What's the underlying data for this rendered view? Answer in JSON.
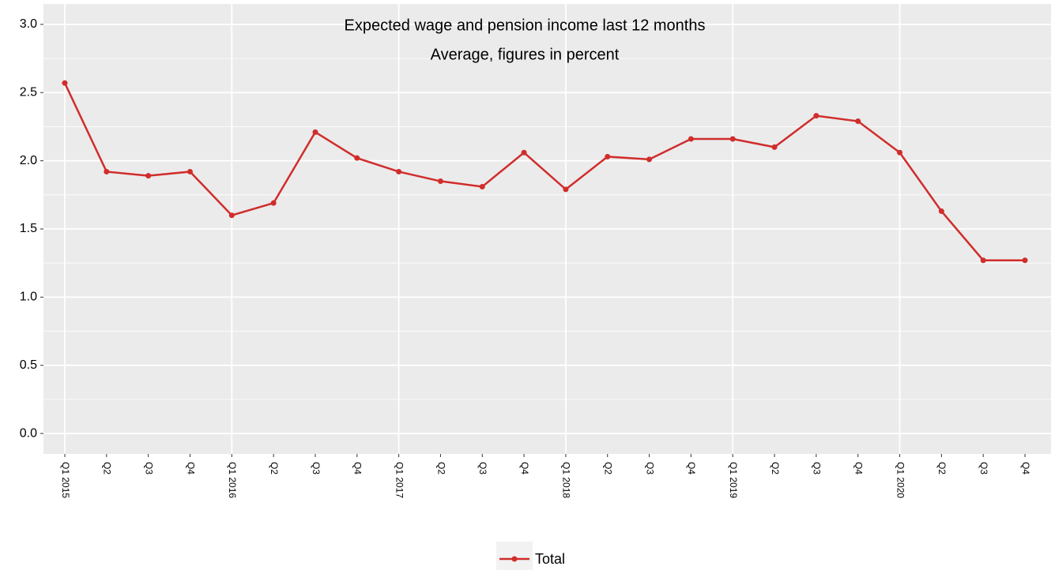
{
  "chart_data": {
    "type": "line",
    "title": "Expected wage and pension income last 12 months",
    "subtitle": "Average, figures in percent",
    "categories": [
      "Q1 2015",
      "Q2",
      "Q3",
      "Q4",
      "Q1 2016",
      "Q2",
      "Q3",
      "Q4",
      "Q1 2017",
      "Q2",
      "Q3",
      "Q4",
      "Q1 2018",
      "Q2",
      "Q3",
      "Q4",
      "Q1 2019",
      "Q2",
      "Q3",
      "Q4",
      "Q1 2020",
      "Q2",
      "Q3",
      "Q4"
    ],
    "series": [
      {
        "name": "Total",
        "color": "#d02d2b",
        "values": [
          2.57,
          1.92,
          1.89,
          1.92,
          1.6,
          1.69,
          2.21,
          2.02,
          1.92,
          1.85,
          1.81,
          2.06,
          1.79,
          2.03,
          2.01,
          2.16,
          2.16,
          2.1,
          2.33,
          2.29,
          2.06,
          1.63,
          1.27,
          1.27
        ]
      }
    ],
    "ylim": [
      -0.15,
      3.15
    ],
    "yticks": [
      {
        "value": 0,
        "label": "0.0"
      },
      0.5,
      {
        "value": 1,
        "label": "1.0"
      },
      1.5,
      {
        "value": 2,
        "label": "2.0"
      },
      2.5,
      {
        "value": 3,
        "label": "3.0"
      }
    ],
    "grid": true,
    "legend": "bottom"
  }
}
